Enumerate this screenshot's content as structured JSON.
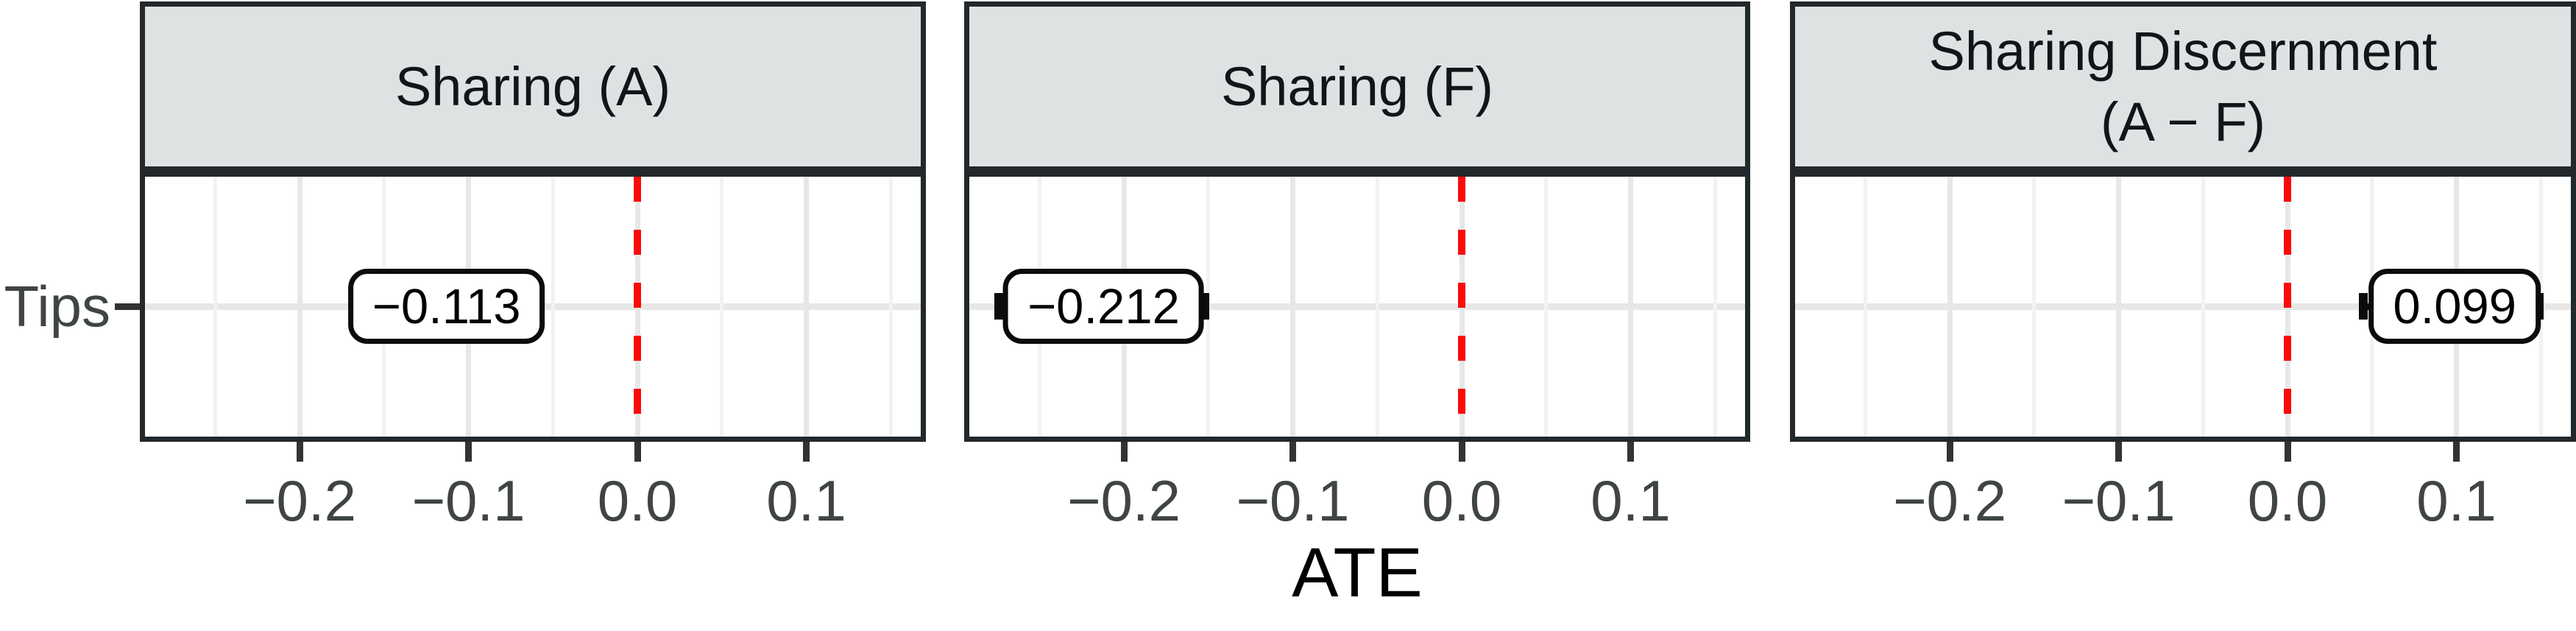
{
  "chart_data": {
    "type": "scatter",
    "subtype": "faceted-forest-pointrange",
    "title": "",
    "xlabel": "ATE",
    "ylabel": "",
    "y_categories": [
      "Tips"
    ],
    "xlim": [
      -0.292,
      0.17
    ],
    "x_ticks": [
      -0.2,
      -0.1,
      0,
      0.1
    ],
    "x_tick_labels": [
      "−0.2",
      "−0.1",
      "0.0",
      "0.1"
    ],
    "x_minor_ticks": [
      -0.25,
      -0.15,
      -0.05,
      0.05,
      0.15
    ],
    "reference_line_x": 0,
    "grid": true,
    "legend": "none",
    "facets": [
      {
        "title": "Sharing (A)",
        "title_lines": [
          "Sharing (A)"
        ],
        "row": "Tips",
        "estimate": -0.113,
        "estimate_label": "−0.113",
        "ci_low": -0.166,
        "ci_high": -0.06
      },
      {
        "title": "Sharing (F)",
        "title_lines": [
          "Sharing (F)"
        ],
        "row": "Tips",
        "estimate": -0.212,
        "estimate_label": "−0.212",
        "ci_low": -0.274,
        "ci_high": -0.152
      },
      {
        "title": "Sharing Discernment (A − F)",
        "title_lines": [
          "Sharing Discernment",
          "(A − F)"
        ],
        "row": "Tips",
        "estimate": 0.099,
        "estimate_label": "0.099",
        "ci_low": 0.045,
        "ci_high": 0.149
      }
    ],
    "colors": {
      "reference_line": "#FA0A0A",
      "strip_fill": "#DDE2E2",
      "panel_border": "#22282B",
      "grid_major": "#E7E7E7",
      "grid_minor": "#F2F2F2",
      "axis_text": "#3F4444",
      "tick_mark": "#333333",
      "title_text": "#121517",
      "estimate_text": "#000000"
    }
  }
}
